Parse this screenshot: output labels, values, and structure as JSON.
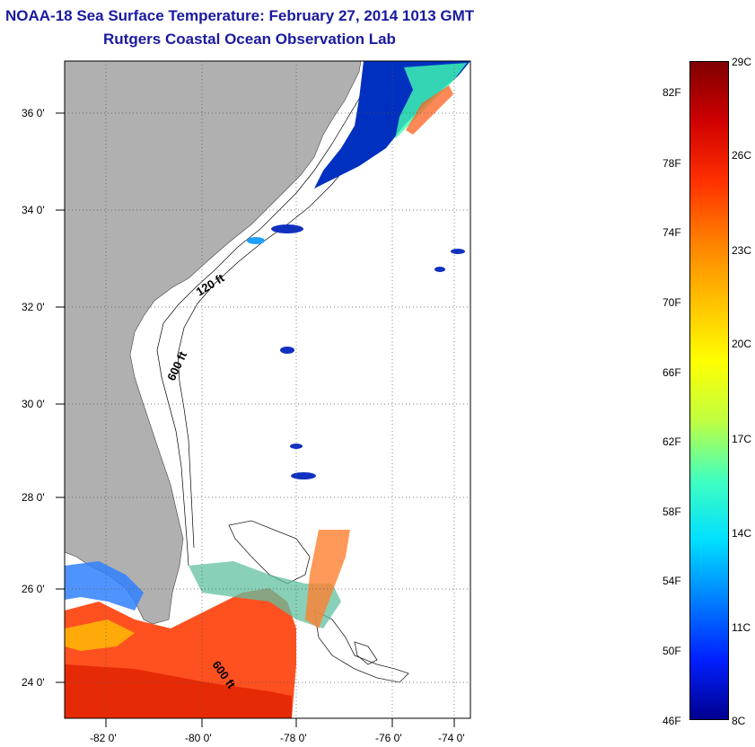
{
  "header": {
    "title": "NOAA-18 Sea Surface Temperature:  February 27, 2014 1013 GMT",
    "subtitle": "Rutgers Coastal Ocean Observation Lab"
  },
  "map": {
    "lat_labels": [
      "36 0'",
      "34 0'",
      "32 0'",
      "30 0'",
      "28 0'",
      "26 0'",
      "24 0'"
    ],
    "lon_labels": [
      "-82 0'",
      "-80 0'",
      "-78 0'",
      "-76 0'",
      "-74 0'"
    ],
    "contour_labels": [
      "120 ft",
      "600 ft",
      "600 ft"
    ],
    "colors": {
      "land": "#b0b0b0",
      "cloud": "#ffffff",
      "grid": "#555555"
    }
  },
  "colorbar": {
    "fahrenheit": [
      "82F",
      "78F",
      "74F",
      "70F",
      "66F",
      "62F",
      "58F",
      "54F",
      "50F",
      "46F"
    ],
    "celsius": [
      "29C",
      "26C",
      "23C",
      "20C",
      "17C",
      "14C",
      "11C",
      "8C"
    ],
    "gradient": [
      "#800000",
      "#d00000",
      "#ff3000",
      "#ff8000",
      "#ffc000",
      "#ffff00",
      "#c0ff40",
      "#40ffc0",
      "#00e0ff",
      "#0080ff",
      "#0020ff",
      "#000090"
    ]
  }
}
